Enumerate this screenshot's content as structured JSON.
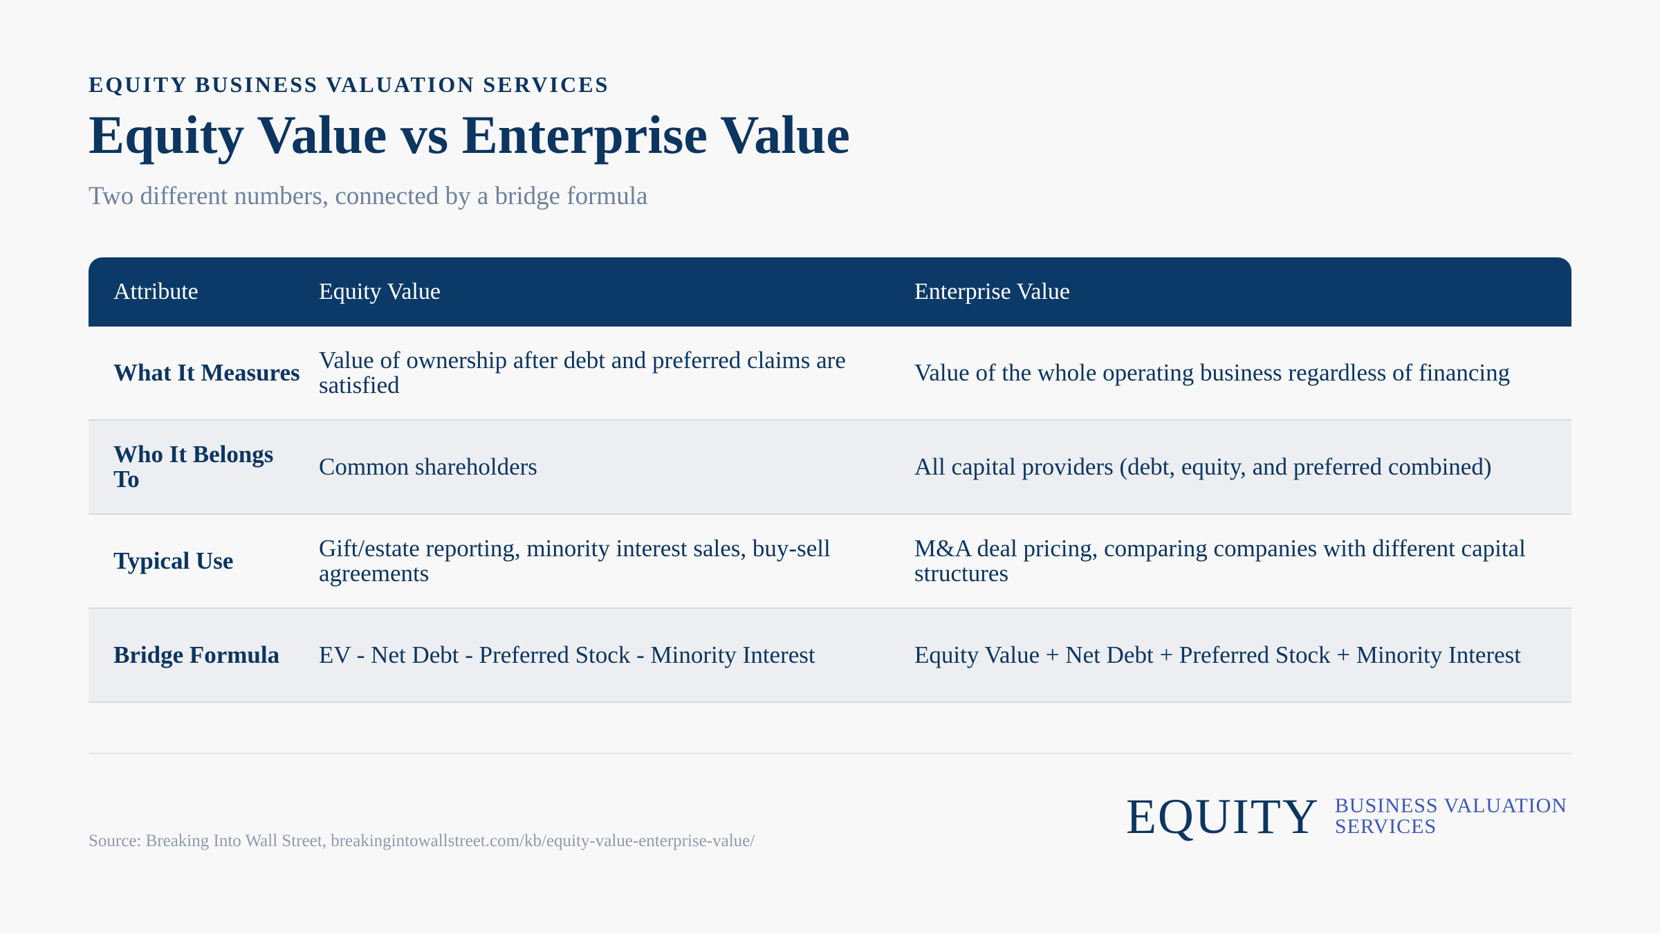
{
  "header": {
    "eyebrow": "EQUITY BUSINESS VALUATION SERVICES",
    "title": "Equity Value vs Enterprise Value",
    "subtitle": "Two different numbers, connected by a bridge formula"
  },
  "table": {
    "columns": [
      "Attribute",
      "Equity Value",
      "Enterprise Value"
    ],
    "rows": [
      {
        "attribute": "What It Measures",
        "equity": "Value of ownership after debt and preferred claims are satisfied",
        "enterprise": "Value of the whole operating business regardless of financing"
      },
      {
        "attribute": "Who It Belongs To",
        "equity": "Common shareholders",
        "enterprise": "All capital providers (debt, equity, and preferred combined)"
      },
      {
        "attribute": "Typical Use",
        "equity": "Gift/estate reporting, minority interest sales, buy-sell agreements",
        "enterprise": "M&A deal pricing, comparing companies with different capital structures"
      },
      {
        "attribute": "Bridge Formula",
        "equity": "EV - Net Debt - Preferred Stock - Minority Interest",
        "enterprise": "Equity Value + Net Debt + Preferred Stock + Minority Interest"
      }
    ]
  },
  "footer": {
    "source": "Source: Breaking Into Wall Street, breakingintowallstreet.com/kb/equity-value-enterprise-value/",
    "logo_word": "EQUITY",
    "logo_tag_line1": "BUSINESS VALUATION",
    "logo_tag_line2": "SERVICES"
  },
  "colors": {
    "navy": "#0c3560",
    "header_bg": "#0c3a68",
    "subtitle": "#6d819e",
    "row_alt": "#eceef1",
    "logo_tag": "#3b57b8"
  }
}
